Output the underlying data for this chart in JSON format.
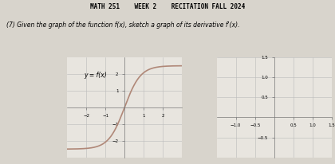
{
  "title": "MATH 251    WEEK 2    RECITATION FALL 2024",
  "subtitle": "(7) Given the graph of the function f(x), sketch a graph of its derivative f'(x).",
  "title_fontsize": 5.5,
  "subtitle_fontsize": 5.5,
  "background_color": "#d8d4cc",
  "panel_bg": "#e8e5df",
  "curve_color": "#b08878",
  "curve_lw": 1.2,
  "left_xlim": [
    -3,
    3
  ],
  "left_ylim": [
    -3,
    3
  ],
  "right_xlim": [
    -1.5,
    1.5
  ],
  "right_ylim": [
    -1.0,
    1.5
  ],
  "label_fx": "y = f(x)",
  "label_fontsize": 5.5,
  "grid_color": "#bbbbbb",
  "grid_lw": 0.4,
  "axis_color": "#777777",
  "tick_fontsize": 4.0,
  "spine_lw": 0.5
}
